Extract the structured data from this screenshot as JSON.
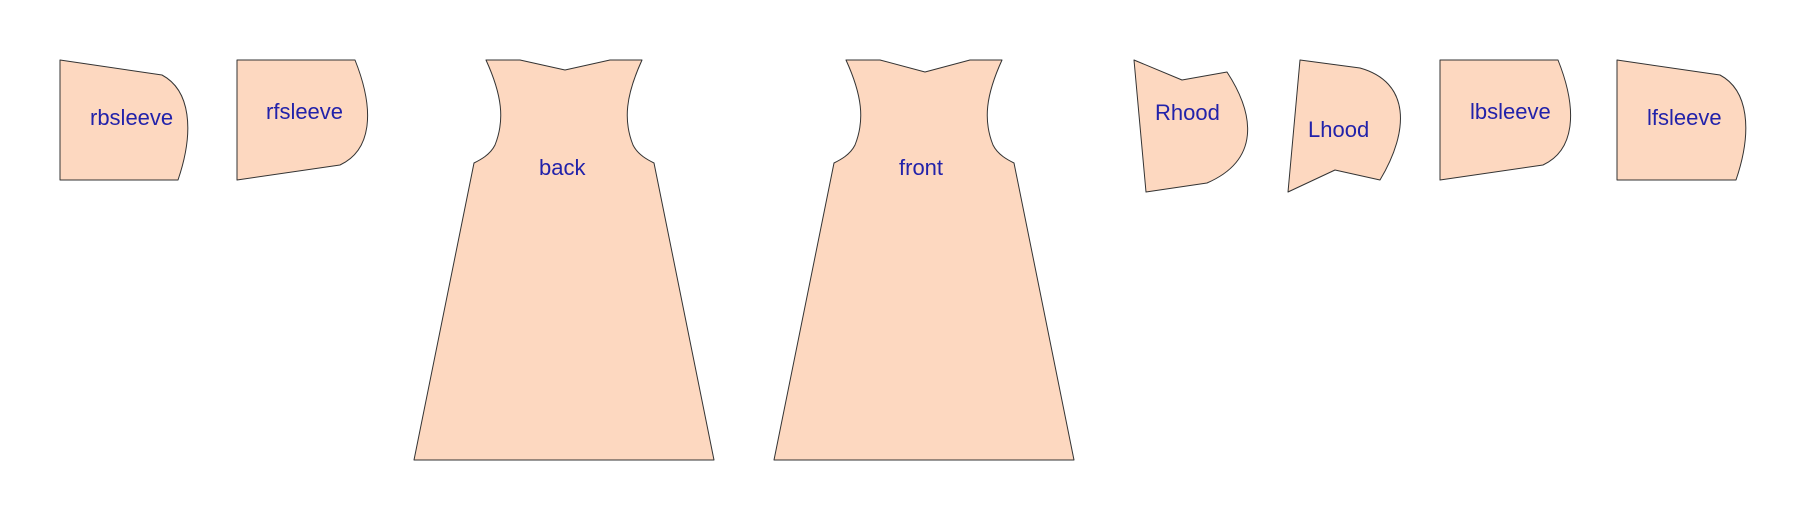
{
  "colors": {
    "piece_fill": "#fdd8c0",
    "piece_stroke": "#333333",
    "label": "#2222aa",
    "background": "#ffffff"
  },
  "pieces": [
    {
      "id": "rbsleeve",
      "label": "rbsleeve"
    },
    {
      "id": "rfsleeve",
      "label": "rfsleeve"
    },
    {
      "id": "back",
      "label": "back"
    },
    {
      "id": "front",
      "label": "front"
    },
    {
      "id": "rhood",
      "label": "Rhood"
    },
    {
      "id": "lhood",
      "label": "Lhood"
    },
    {
      "id": "lbsleeve",
      "label": "lbsleeve"
    },
    {
      "id": "lfsleeve",
      "label": "lfsleeve"
    }
  ]
}
